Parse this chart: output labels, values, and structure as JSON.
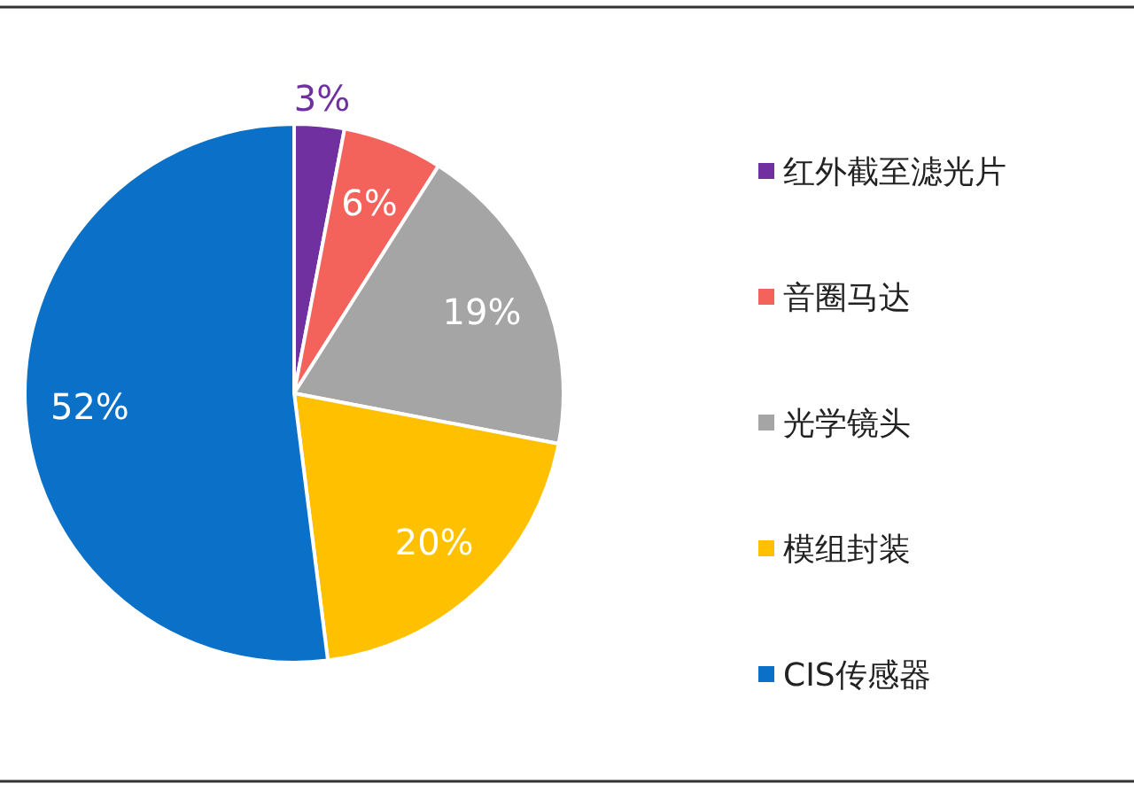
{
  "chart_data": {
    "type": "pie",
    "categories": [
      "红外截至滤光片",
      "音圈马达",
      "光学镜头",
      "模组封装",
      "CIS传感器"
    ],
    "values": [
      3,
      6,
      19,
      20,
      52
    ],
    "colors": [
      "#7030a0",
      "#f4625c",
      "#a5a5a5",
      "#ffc000",
      "#0a70c8"
    ],
    "value_labels": [
      "3%",
      "6%",
      "19%",
      "20%",
      "52%"
    ],
    "legend": "right"
  }
}
